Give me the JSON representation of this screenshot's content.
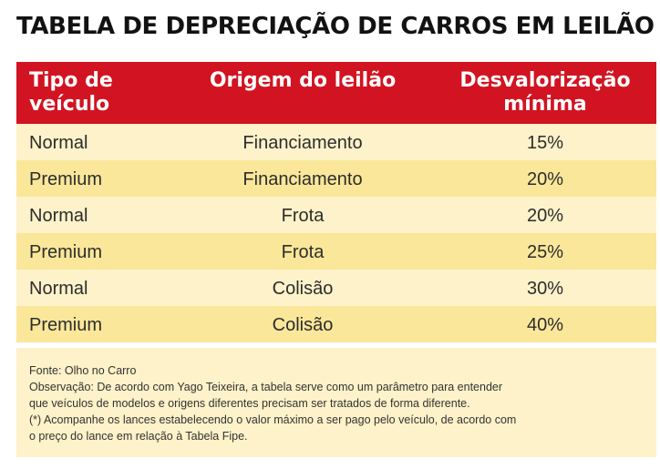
{
  "title": "TABELA DE DEPRECIAÇÃO DE CARROS EM LEILÃO *",
  "table": {
    "headers": {
      "tipo_line1": "Tipo de",
      "tipo_line2": "veículo",
      "origem": "Origem do leilão",
      "desval_line1": "Desvalorização",
      "desval_line2": "mínima"
    },
    "rows": [
      {
        "tipo": "Normal",
        "origem": "Financiamento",
        "desvalorizacao": "15%"
      },
      {
        "tipo": "Premium",
        "origem": "Financiamento",
        "desvalorizacao": "20%"
      },
      {
        "tipo": "Normal",
        "origem": "Frota",
        "desvalorizacao": "20%"
      },
      {
        "tipo": "Premium",
        "origem": "Frota",
        "desvalorizacao": "25%"
      },
      {
        "tipo": "Normal",
        "origem": "Colisão",
        "desvalorizacao": "30%"
      },
      {
        "tipo": "Premium",
        "origem": "Colisão",
        "desvalorizacao": "40%"
      }
    ]
  },
  "notes": {
    "fonte": "Fonte: Olho no Carro",
    "obs_line1": "Observação: De acordo com Yago Teixeira, a tabela serve como um parâmetro para entender",
    "obs_line2": "que veículos de modelos e origens diferentes precisam ser tratados de forma diferente.",
    "asterisco_line1": "(*) Acompanhe os lances estabelecendo o valor máximo a ser pago pelo veículo, de acordo com",
    "asterisco_line2": "o preço do lance em relação à Tabela Fipe."
  },
  "colors": {
    "header_bg": "#d21321",
    "row_light": "#fdf2c9",
    "row_dark": "#fae79a"
  }
}
